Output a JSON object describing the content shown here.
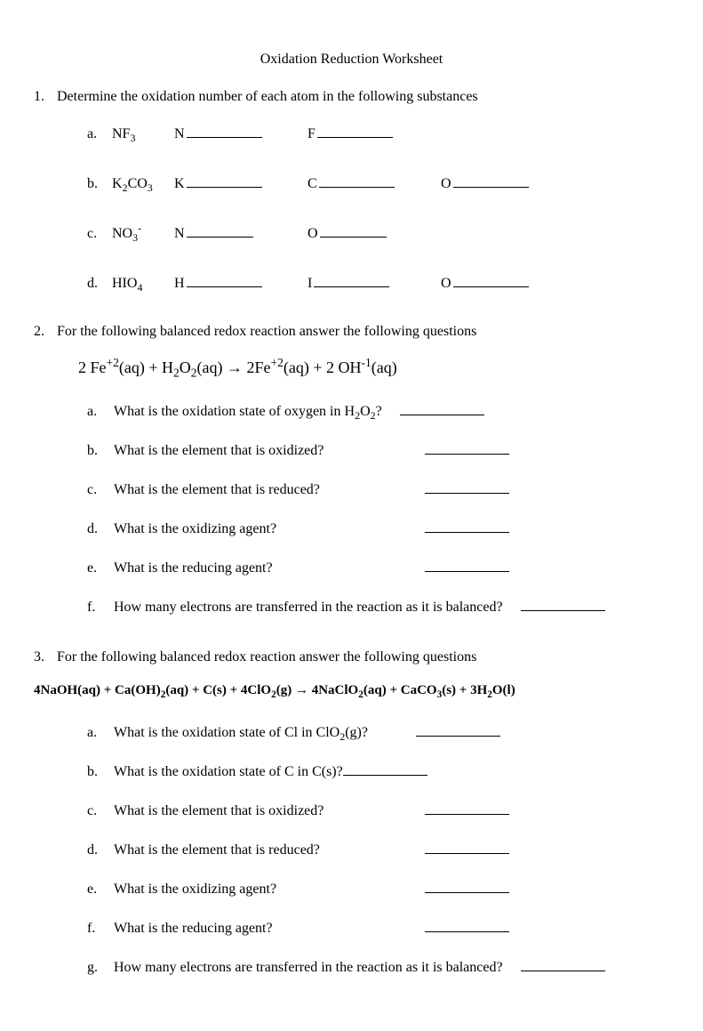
{
  "background_color": "#ffffff",
  "text_color": "#000000",
  "font_family": "Times New Roman",
  "title": "Oxidation Reduction Worksheet",
  "q1": {
    "num": "1.",
    "text": "Determine the oxidation number of each atom in the following substances",
    "items": [
      {
        "letter": "a.",
        "formula_html": "NF<sub>3</sub>",
        "elems": [
          "N",
          "F"
        ]
      },
      {
        "letter": "b.",
        "formula_html": "K<sub>2</sub>CO<sub>3</sub>",
        "elems": [
          "K",
          "C",
          "O"
        ]
      },
      {
        "letter": "c.",
        "formula_html": "NO<sub>3</sub><sup>-</sup>",
        "elems": [
          "N",
          "O"
        ]
      },
      {
        "letter": "d.",
        "formula_html": "HIO<sub>4</sub>",
        "elems": [
          "H",
          "I",
          "O"
        ]
      }
    ]
  },
  "q2": {
    "num": "2.",
    "text": "For the following balanced redox reaction answer the following questions",
    "equation_html": "2 Fe<sup>+2</sup>(aq)  +  H<sub>2</sub>O<sub>2</sub>(aq)  →  2Fe<sup>+2</sup>(aq)  +  2 OH<sup>-1</sup>(aq)",
    "subs": [
      {
        "letter": "a.",
        "text_html": "What is the oxidation state of oxygen in H<sub>2</sub>O<sub>2</sub>?"
      },
      {
        "letter": "b.",
        "text_html": "What is the element that is oxidized?"
      },
      {
        "letter": "c.",
        "text_html": "What is the element that is reduced?"
      },
      {
        "letter": "d.",
        "text_html": "What is the oxidizing agent?"
      },
      {
        "letter": "e.",
        "text_html": "What is the reducing agent?"
      },
      {
        "letter": "f.",
        "text_html": "How many electrons are transferred in the reaction as it is balanced?"
      }
    ]
  },
  "q3": {
    "num": "3.",
    "text": "For the following balanced redox reaction answer the following questions",
    "equation_html": "4NaOH(aq) + Ca(OH)<sub>2</sub>(aq) + C(s) + 4ClO<sub>2</sub>(g) → 4NaClO<sub>2</sub>(aq) + CaCO<sub>3</sub>(s) + 3H<sub>2</sub>O(l)",
    "subs": [
      {
        "letter": "a.",
        "text_html": "What is the oxidation state of Cl in ClO<sub>2</sub>(g)?"
      },
      {
        "letter": "b.",
        "text_html": "What is the oxidation state of C in C(s)?"
      },
      {
        "letter": "c.",
        "text_html": "What is the element that is oxidized?"
      },
      {
        "letter": "d.",
        "text_html": "What is the element that is reduced?"
      },
      {
        "letter": "e.",
        "text_html": "What is the oxidizing agent?"
      },
      {
        "letter": "f.",
        "text_html": "What is the reducing agent?"
      },
      {
        "letter": "g.",
        "text_html": "How many electrons are transferred in the reaction as it is balanced?"
      }
    ]
  }
}
